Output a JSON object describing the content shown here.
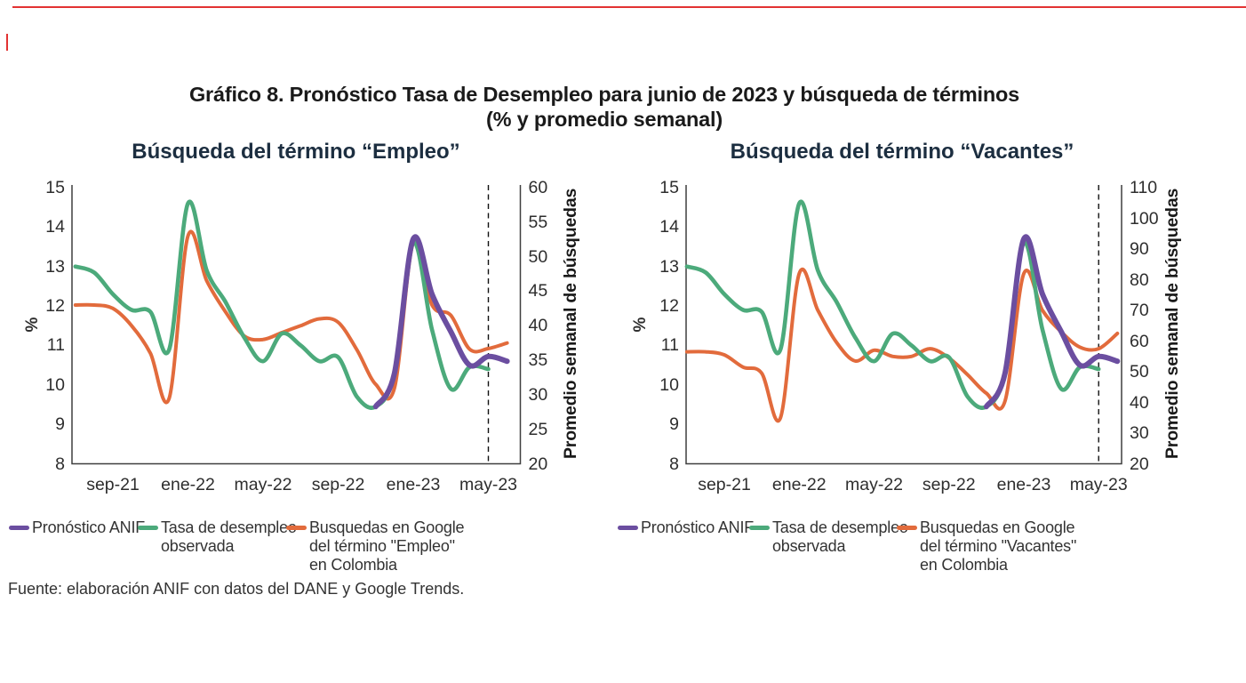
{
  "page": {
    "title_line1": "Gráfico 8. Pronóstico Tasa de Desempleo para junio de 2023 y búsqueda de términos",
    "title_line2": "(% y promedio semanal)",
    "source": "Fuente: elaboración ANIF con datos del DANE y Google Trends."
  },
  "colors": {
    "forecast": "#6b4ea0",
    "observed": "#4caa7b",
    "google": "#e26b3c",
    "axis": "#3f3f3f",
    "dashed": "#111111",
    "accent_frame": "#e23333"
  },
  "months": [
    "jul-21",
    "ago-21",
    "sep-21",
    "oct-21",
    "nov-21",
    "dic-21",
    "ene-22",
    "feb-22",
    "mar-22",
    "abr-22",
    "may-22",
    "jun-22",
    "jul-22",
    "ago-22",
    "sep-22",
    "oct-22",
    "nov-22",
    "dic-22",
    "ene-23",
    "feb-23",
    "mar-23",
    "abr-23",
    "may-23",
    "jun-23"
  ],
  "chart_data": [
    {
      "type": "line",
      "title": "Búsqueda del término “Empleo”",
      "ylabel_left": "%",
      "ylabel_right": "Promedio semanal de búsquedas",
      "x_tick_labels": [
        "sep-21",
        "ene-22",
        "may-22",
        "sep-22",
        "ene-23",
        "may-23"
      ],
      "x_tick_month_index": [
        2,
        6,
        10,
        14,
        18,
        22
      ],
      "y_left_ticks": [
        15,
        14,
        13,
        12,
        11,
        10,
        9,
        8
      ],
      "y_left_range": [
        8,
        15
      ],
      "y_right_ticks": [
        60,
        55,
        50,
        45,
        40,
        35,
        30,
        25,
        20
      ],
      "y_right_range": [
        20,
        60
      ],
      "dashed_line_month": "may-23",
      "dashed_line_month_index": 22,
      "grid": false,
      "series": [
        {
          "name": "Busquedas en Google del término \"Empleo\" en Colombia",
          "axis": "right",
          "color_key": "google",
          "start_index": 0,
          "width": 4,
          "values": [
            43,
            43,
            42.5,
            40,
            36,
            29.5,
            53,
            46.5,
            42,
            38.5,
            38,
            39,
            40,
            41,
            40.5,
            36.5,
            31.5,
            31,
            52,
            43,
            41.5,
            36.6,
            36.7,
            37.5
          ]
        },
        {
          "name": "Tasa de desempleo observada",
          "axis": "left",
          "color_key": "observed",
          "start_index": 0,
          "width": 4.6,
          "values": [
            13.0,
            12.85,
            12.3,
            11.9,
            11.85,
            10.9,
            14.6,
            12.9,
            12.1,
            11.2,
            10.6,
            11.3,
            11.0,
            10.6,
            10.7,
            9.7,
            9.45,
            10.3,
            13.6,
            11.4,
            9.9,
            10.45,
            10.4
          ]
        },
        {
          "name": "Pronóstico ANIF",
          "axis": "left",
          "color_key": "forecast",
          "start_index": 16,
          "width": 6,
          "values": [
            9.45,
            10.3,
            13.7,
            12.3,
            11.35,
            10.5,
            10.72,
            10.6
          ]
        }
      ],
      "legend": [
        {
          "label": "Pronóstico ANIF",
          "color_key": "forecast"
        },
        {
          "label": "Tasa de desempleo\nobservada",
          "color_key": "observed"
        },
        {
          "label": "Busquedas en Google\ndel término \"Empleo\"\nen Colombia",
          "color_key": "google"
        }
      ]
    },
    {
      "type": "line",
      "title": "Búsqueda del término “Vacantes”",
      "ylabel_left": "%",
      "ylabel_right": "Promedio semanal de búsquedas",
      "x_tick_labels": [
        "sep-21",
        "ene-22",
        "may-22",
        "sep-22",
        "ene-23",
        "may-23"
      ],
      "x_tick_month_index": [
        2,
        6,
        10,
        14,
        18,
        22
      ],
      "y_left_ticks": [
        15,
        14,
        13,
        12,
        11,
        10,
        9,
        8
      ],
      "y_left_range": [
        8,
        15
      ],
      "y_right_ticks": [
        110,
        100,
        90,
        80,
        70,
        60,
        50,
        40,
        30,
        20
      ],
      "y_right_range": [
        20,
        110
      ],
      "dashed_line_month": "may-23",
      "dashed_line_month_index": 22,
      "grid": false,
      "series": [
        {
          "name": "Busquedas en Google del término \"Vacantes\" en Colombia",
          "axis": "right",
          "color_key": "google",
          "start_index": 0,
          "width": 4,
          "values": [
            56.5,
            56.5,
            55.5,
            51.5,
            49.5,
            35,
            82,
            70,
            59.5,
            53.5,
            57,
            55,
            55,
            57.5,
            54.5,
            49,
            43,
            40.5,
            82,
            70,
            63,
            58,
            57.5,
            62.5
          ]
        },
        {
          "name": "Tasa de desempleo observada",
          "axis": "left",
          "color_key": "observed",
          "start_index": 0,
          "width": 4.6,
          "values": [
            13.0,
            12.85,
            12.3,
            11.9,
            11.85,
            10.9,
            14.6,
            12.9,
            12.1,
            11.2,
            10.6,
            11.3,
            11.0,
            10.6,
            10.7,
            9.7,
            9.45,
            10.3,
            13.6,
            11.4,
            9.9,
            10.45,
            10.4
          ]
        },
        {
          "name": "Pronóstico ANIF",
          "axis": "left",
          "color_key": "forecast",
          "start_index": 16,
          "width": 6,
          "values": [
            9.45,
            10.3,
            13.7,
            12.3,
            11.35,
            10.5,
            10.72,
            10.6
          ]
        }
      ],
      "legend": [
        {
          "label": "Pronóstico ANIF",
          "color_key": "forecast"
        },
        {
          "label": "Tasa de desempleo\nobservada",
          "color_key": "observed"
        },
        {
          "label": "Busquedas en Google\ndel término \"Vacantes\"\nen Colombia",
          "color_key": "google"
        }
      ]
    }
  ]
}
